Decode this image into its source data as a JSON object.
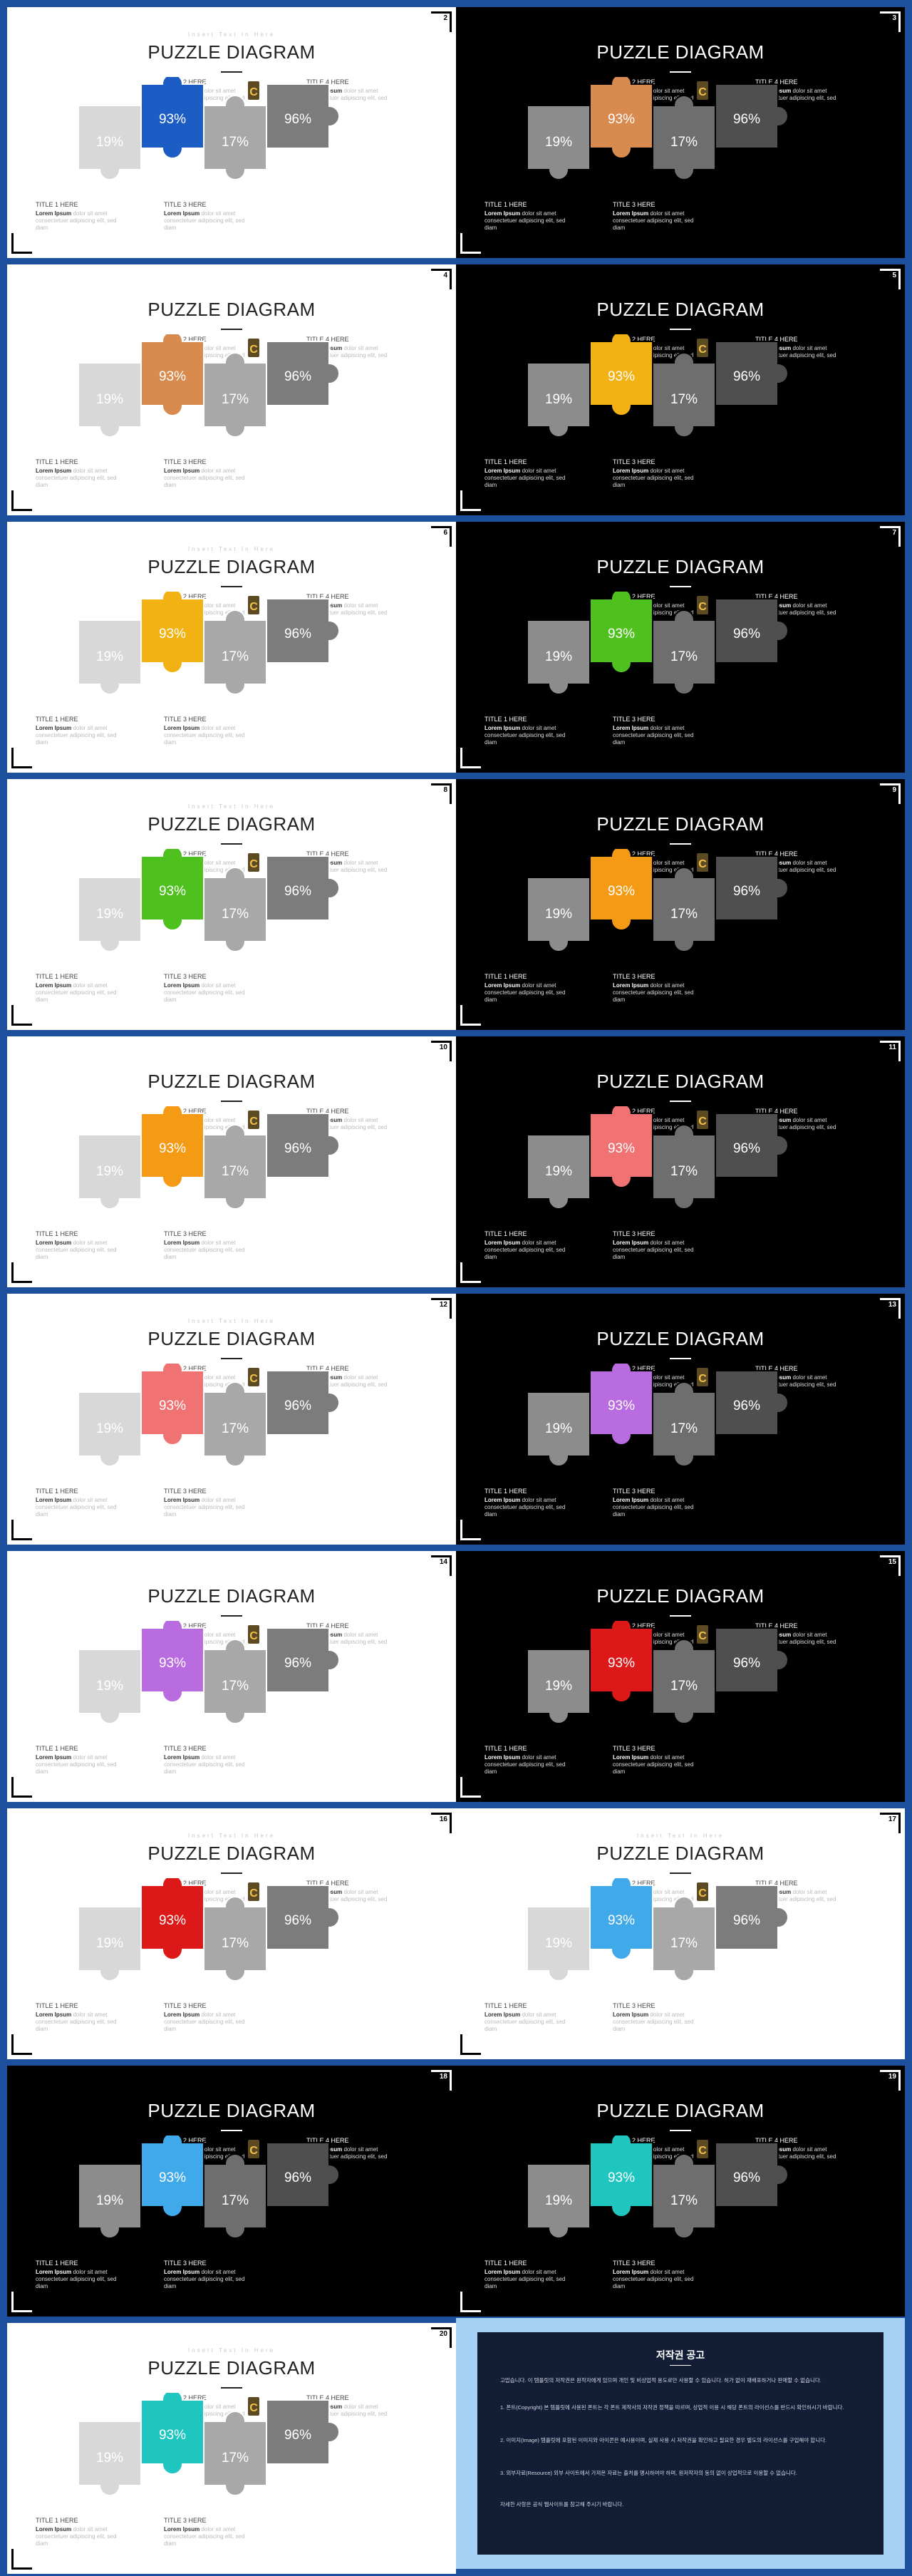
{
  "heading": "PUZZLE DIAGRAM",
  "sub_text": "Insert Text In Here",
  "pieces": [
    "19%",
    "93%",
    "17%",
    "96%"
  ],
  "labels": {
    "title1": "TITLE 1 HERE",
    "title2": "TITLE 2 HERE",
    "title3": "TITLE 3 HERE",
    "title4": "TITLE 4 HERE",
    "body_bold": "Lorem Ipsum",
    "body_rest": "dolor sit amet consectetuer adipiscing elit, sed diam"
  },
  "slides": [
    {
      "page": "2",
      "theme": "light",
      "accent": "#1b5dc4",
      "subtitle": true
    },
    {
      "page": "3",
      "theme": "dark",
      "accent": "#d98b4f",
      "subtitle": false
    },
    {
      "page": "4",
      "theme": "light",
      "accent": "#d98b4f",
      "subtitle": false
    },
    {
      "page": "5",
      "theme": "dark",
      "accent": "#f3b214",
      "subtitle": false
    },
    {
      "page": "6",
      "theme": "light",
      "accent": "#f3b214",
      "subtitle": true
    },
    {
      "page": "7",
      "theme": "dark",
      "accent": "#4fc11f",
      "subtitle": false
    },
    {
      "page": "8",
      "theme": "light",
      "accent": "#4fc11f",
      "subtitle": true
    },
    {
      "page": "9",
      "theme": "dark",
      "accent": "#f59a15",
      "subtitle": false
    },
    {
      "page": "10",
      "theme": "light",
      "accent": "#f59a15",
      "subtitle": false
    },
    {
      "page": "11",
      "theme": "dark",
      "accent": "#f07272",
      "subtitle": false
    },
    {
      "page": "12",
      "theme": "light",
      "accent": "#f07272",
      "subtitle": true
    },
    {
      "page": "13",
      "theme": "dark",
      "accent": "#b96be0",
      "subtitle": false
    },
    {
      "page": "14",
      "theme": "light",
      "accent": "#b96be0",
      "subtitle": false
    },
    {
      "page": "15",
      "theme": "dark",
      "accent": "#dc1818",
      "subtitle": false
    },
    {
      "page": "16",
      "theme": "light",
      "accent": "#dc1818",
      "subtitle": true
    },
    {
      "page": "17",
      "theme": "light",
      "accent": "#3fa9ea",
      "subtitle": true
    },
    {
      "page": "18",
      "theme": "dark",
      "accent": "#3fa9ea",
      "subtitle": false
    },
    {
      "page": "19",
      "theme": "dark",
      "accent": "#1fc6c0",
      "subtitle": false
    },
    {
      "page": "20",
      "theme": "light",
      "accent": "#1fc6c0",
      "subtitle": true
    }
  ],
  "notice": {
    "title": "저작권 공고",
    "paragraphs": [
      "고맙습니다. 이 템플릿의 저작권은 원작자에게 있으며 개인 및 비상업적 용도로만 사용할 수 있습니다. 허가 없이 재배포하거나 판매할 수 없습니다.",
      "1. 폰트(Copyright) 본 템플릿에 사용된 폰트는 각 폰트 제작사의 저작권 정책을 따르며, 상업적 이용 시 해당 폰트의 라이선스를 반드시 확인하시기 바랍니다.",
      "2. 이미지(Image) 템플릿에 포함된 이미지와 아이콘은 예시용이며, 실제 사용 시 저작권을 확인하고 필요한 경우 별도의 라이선스를 구입해야 합니다.",
      "3. 외부자료(Resource) 외부 사이트에서 가져온 자료는 출처를 명시하여야 하며, 원저작자의 동의 없이 상업적으로 이용할 수 없습니다.",
      "자세한 사항은 공식 웹사이트를 참고해 주시기 바랍니다."
    ]
  }
}
